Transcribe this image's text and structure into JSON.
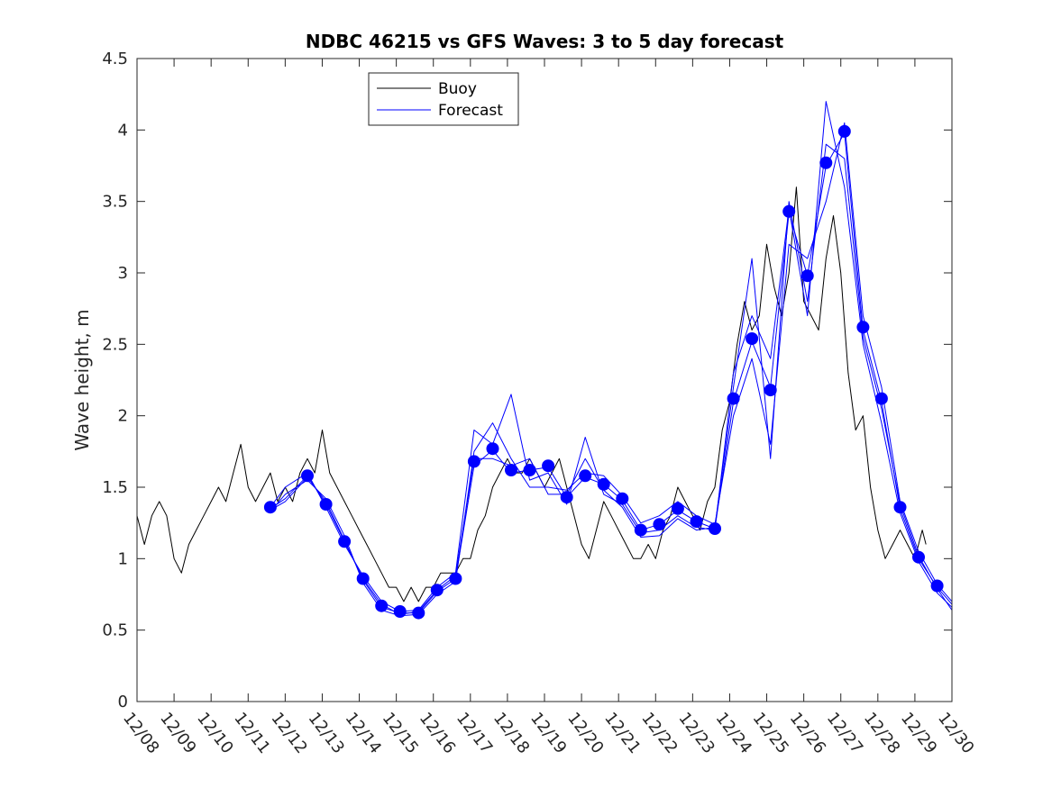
{
  "chart_data": {
    "type": "line",
    "title": "NDBC 46215 vs GFS Waves: 3 to 5 day forecast",
    "xlabel": "",
    "ylabel": "Wave height, m",
    "x_unit": "days since 12/08",
    "xlim": [
      0,
      22
    ],
    "ylim": [
      0,
      4.5
    ],
    "x_tick_labels": [
      "12/08",
      "12/09",
      "12/10",
      "12/11",
      "12/12",
      "12/13",
      "12/14",
      "12/15",
      "12/16",
      "12/17",
      "12/18",
      "12/19",
      "12/20",
      "12/21",
      "12/22",
      "12/23",
      "12/24",
      "12/25",
      "12/26",
      "12/27",
      "12/28",
      "12/29",
      "12/30"
    ],
    "y_ticks": [
      0,
      0.5,
      1,
      1.5,
      2,
      2.5,
      3,
      3.5,
      4,
      4.5
    ],
    "y_tick_labels": [
      "0",
      "0.5",
      "1",
      "1.5",
      "2",
      "2.5",
      "3",
      "3.5",
      "4",
      "4.5"
    ],
    "legend": {
      "placement": "top-center",
      "entries": [
        "Buoy",
        "Forecast"
      ]
    },
    "colors": {
      "buoy": "#000000",
      "forecast": "#0000ff",
      "axis": "#262626"
    },
    "series": [
      {
        "name": "Buoy",
        "x": [
          0.0,
          0.2,
          0.4,
          0.6,
          0.8,
          1.0,
          1.2,
          1.4,
          1.6,
          1.8,
          2.0,
          2.2,
          2.4,
          2.6,
          2.8,
          3.0,
          3.2,
          3.4,
          3.6,
          3.8,
          4.0,
          4.2,
          4.4,
          4.6,
          4.8,
          5.0,
          5.2,
          5.4,
          5.6,
          5.8,
          6.0,
          6.2,
          6.4,
          6.6,
          6.8,
          7.0,
          7.2,
          7.4,
          7.6,
          7.8,
          8.0,
          8.2,
          8.4,
          8.6,
          8.8,
          9.0,
          9.2,
          9.4,
          9.6,
          9.8,
          10.0,
          10.2,
          10.4,
          10.6,
          10.8,
          11.0,
          11.2,
          11.4,
          11.6,
          11.8,
          12.0,
          12.2,
          12.4,
          12.6,
          12.8,
          13.0,
          13.2,
          13.4,
          13.6,
          13.8,
          14.0,
          14.2,
          14.4,
          14.6,
          14.8,
          15.0,
          15.2,
          15.4,
          15.6,
          15.8,
          16.0,
          16.2,
          16.4,
          16.6,
          16.8,
          17.0,
          17.2,
          17.4,
          17.6,
          17.8,
          18.0,
          18.2,
          18.4,
          18.6,
          18.8,
          19.0,
          19.2,
          19.4,
          19.6,
          19.8,
          20.0,
          20.2,
          20.4,
          20.6,
          20.8,
          21.0,
          21.2,
          21.3
        ],
        "values": [
          1.3,
          1.1,
          1.3,
          1.4,
          1.3,
          1.0,
          0.9,
          1.1,
          1.2,
          1.3,
          1.4,
          1.5,
          1.4,
          1.6,
          1.8,
          1.5,
          1.4,
          1.5,
          1.6,
          1.4,
          1.5,
          1.4,
          1.6,
          1.7,
          1.6,
          1.9,
          1.6,
          1.5,
          1.4,
          1.3,
          1.2,
          1.1,
          1.0,
          0.9,
          0.8,
          0.8,
          0.7,
          0.8,
          0.7,
          0.8,
          0.8,
          0.9,
          0.9,
          0.9,
          1.0,
          1.0,
          1.2,
          1.3,
          1.5,
          1.6,
          1.7,
          1.6,
          1.6,
          1.7,
          1.6,
          1.5,
          1.6,
          1.7,
          1.5,
          1.3,
          1.1,
          1.0,
          1.2,
          1.4,
          1.3,
          1.2,
          1.1,
          1.0,
          1.0,
          1.1,
          1.0,
          1.2,
          1.3,
          1.5,
          1.4,
          1.3,
          1.2,
          1.4,
          1.5,
          1.9,
          2.1,
          2.5,
          2.8,
          2.6,
          2.7,
          3.2,
          2.9,
          2.7,
          3.0,
          3.6,
          2.8,
          2.7,
          2.6,
          3.1,
          3.4,
          3.0,
          2.3,
          1.9,
          2.0,
          1.5,
          1.2,
          1.0,
          1.1,
          1.2,
          1.1,
          1.0,
          1.2,
          1.1
        ]
      },
      {
        "name": "Forecast",
        "x": [
          3.6,
          4.0,
          4.6,
          5.1,
          5.6,
          6.1,
          6.6,
          7.1,
          7.6,
          8.1,
          8.6,
          9.1,
          9.6,
          10.1,
          10.6,
          11.1,
          11.6,
          12.1,
          12.6,
          13.1,
          13.6,
          14.1,
          14.6,
          15.1,
          15.6,
          16.1,
          16.6,
          17.1,
          17.6,
          18.1,
          18.6,
          19.1,
          19.6,
          20.1,
          20.6,
          21.1,
          21.6,
          22.0
        ],
        "values": [
          1.34,
          1.4,
          1.57,
          1.4,
          1.13,
          0.85,
          0.66,
          0.62,
          0.62,
          0.77,
          0.86,
          1.65,
          1.76,
          1.6,
          1.62,
          1.64,
          1.43,
          1.57,
          1.52,
          1.41,
          1.2,
          1.24,
          1.34,
          1.26,
          1.21,
          2.1,
          2.52,
          2.2,
          3.42,
          2.98,
          3.75,
          3.98,
          2.6,
          2.1,
          1.35,
          1.0,
          0.8,
          0.68
        ]
      },
      {
        "name": "Forecast",
        "x": [
          3.6,
          4.0,
          4.6,
          5.1,
          5.6,
          6.1,
          6.6,
          7.1,
          7.6,
          8.1,
          8.6,
          9.1,
          9.6,
          10.1,
          10.6,
          11.1,
          11.6,
          12.1,
          12.6,
          13.1,
          13.6,
          14.1,
          14.6,
          15.1,
          15.6,
          16.1,
          16.6,
          17.1,
          17.6,
          18.1,
          18.6,
          19.1,
          19.6,
          20.1,
          20.6,
          21.1,
          21.6,
          22.0
        ],
        "values": [
          1.36,
          1.5,
          1.6,
          1.36,
          1.1,
          0.88,
          0.7,
          0.63,
          0.64,
          0.8,
          0.9,
          1.9,
          1.8,
          2.15,
          1.55,
          1.6,
          1.38,
          1.85,
          1.45,
          1.38,
          1.18,
          1.2,
          1.3,
          1.22,
          1.2,
          2.3,
          2.7,
          2.4,
          3.45,
          2.7,
          4.2,
          3.6,
          2.5,
          1.95,
          1.32,
          0.98,
          0.76,
          0.66
        ]
      },
      {
        "name": "Forecast",
        "x": [
          3.6,
          4.0,
          4.6,
          5.1,
          5.6,
          6.1,
          6.6,
          7.1,
          7.6,
          8.1,
          8.6,
          9.1,
          9.6,
          10.1,
          10.6,
          11.1,
          11.6,
          12.1,
          12.6,
          13.1,
          13.6,
          14.1,
          14.6,
          15.1,
          15.6,
          16.1,
          16.6,
          17.1,
          17.6,
          18.1,
          18.6,
          19.1,
          19.6,
          20.1,
          20.6,
          21.1,
          21.6,
          22.0
        ],
        "values": [
          1.33,
          1.45,
          1.55,
          1.42,
          1.16,
          0.83,
          0.64,
          0.6,
          0.61,
          0.75,
          0.84,
          1.75,
          1.95,
          1.7,
          1.5,
          1.5,
          1.48,
          1.6,
          1.58,
          1.44,
          1.25,
          1.3,
          1.4,
          1.3,
          1.24,
          2.0,
          2.4,
          1.8,
          3.2,
          3.1,
          3.5,
          4.05,
          2.7,
          2.2,
          1.4,
          1.05,
          0.82,
          0.7
        ]
      },
      {
        "name": "Forecast",
        "x": [
          3.6,
          4.0,
          4.6,
          5.1,
          5.6,
          6.1,
          6.6,
          7.1,
          7.6,
          8.1,
          8.6,
          9.1,
          9.6,
          10.1,
          10.6,
          11.1,
          11.6,
          12.1,
          12.6,
          13.1,
          13.6,
          14.1,
          14.6,
          15.1,
          15.6,
          16.1,
          16.6,
          17.1,
          17.6,
          18.1,
          18.6,
          19.1,
          19.6,
          20.1,
          20.6,
          21.1,
          21.6,
          22.0
        ],
        "values": [
          1.35,
          1.42,
          1.58,
          1.38,
          1.12,
          0.86,
          0.68,
          0.61,
          0.63,
          0.78,
          0.88,
          1.7,
          1.7,
          1.65,
          1.7,
          1.45,
          1.45,
          1.7,
          1.48,
          1.36,
          1.15,
          1.16,
          1.28,
          1.2,
          1.22,
          2.2,
          3.1,
          1.7,
          3.5,
          2.8,
          3.9,
          3.8,
          2.55,
          2.05,
          1.38,
          1.02,
          0.79,
          0.64
        ]
      }
    ],
    "markers": {
      "name": "Forecast",
      "x": [
        3.6,
        4.6,
        5.1,
        5.6,
        6.1,
        6.6,
        7.1,
        7.6,
        8.1,
        8.6,
        9.1,
        9.6,
        10.1,
        10.6,
        11.1,
        11.6,
        12.1,
        12.6,
        13.1,
        13.6,
        14.1,
        14.6,
        15.1,
        15.6,
        16.1,
        16.6,
        17.1,
        17.6,
        18.1,
        18.6,
        19.1,
        19.6,
        20.1,
        20.6,
        21.1,
        21.6
      ],
      "values": [
        1.36,
        1.58,
        1.38,
        1.12,
        0.86,
        0.67,
        0.63,
        0.62,
        0.78,
        0.86,
        1.68,
        1.77,
        1.62,
        1.62,
        1.65,
        1.43,
        1.58,
        1.52,
        1.42,
        1.2,
        1.24,
        1.35,
        1.26,
        1.21,
        2.12,
        2.54,
        2.18,
        3.43,
        2.98,
        3.77,
        3.99,
        2.62,
        2.12,
        1.36,
        1.01,
        0.81
      ]
    }
  }
}
